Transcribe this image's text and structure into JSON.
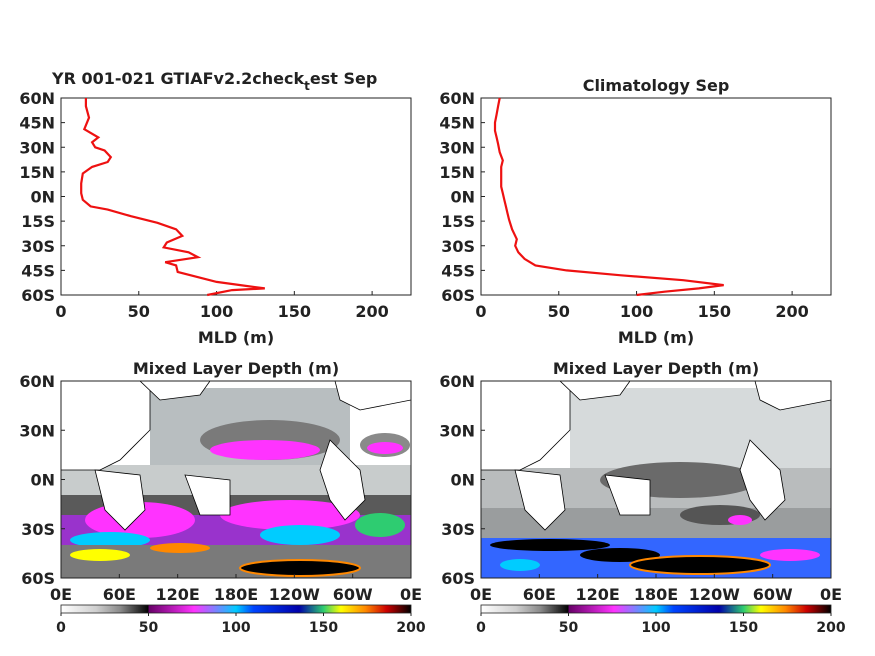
{
  "chart_data": [
    {
      "type": "line",
      "title": "YR 001-021 GTIAFv2.2check",
      "title_sub": "t",
      "title_after": "est Sep",
      "xlabel": "MLD (m)",
      "ylabel": "",
      "xlim": [
        0,
        225
      ],
      "ylim": [
        -60,
        60
      ],
      "xticks": [
        "0",
        "50",
        "100",
        "150",
        "200"
      ],
      "yticks": [
        "60N",
        "45N",
        "30N",
        "15N",
        "0N",
        "15S",
        "30S",
        "45S",
        "60S"
      ],
      "color": "#ee1111",
      "series": [
        {
          "x": [
            94,
            110,
            131,
            100,
            75,
            74,
            67,
            88,
            82,
            66,
            68,
            78,
            74,
            62,
            45,
            30,
            19,
            14,
            13,
            13,
            14,
            20,
            30,
            32,
            28,
            22,
            20,
            24,
            15,
            18,
            16,
            16
          ],
          "y": [
            -60,
            -57,
            -56,
            -52,
            -46,
            -42,
            -40,
            -37,
            -34,
            -31,
            -28,
            -24,
            -20,
            -16,
            -12,
            -8,
            -6,
            -2,
            2,
            8,
            14,
            18,
            21,
            24,
            28,
            30,
            33,
            36,
            41,
            48,
            55,
            60
          ]
        }
      ]
    },
    {
      "type": "line",
      "title": "Climatology Sep",
      "xlabel": "MLD (m)",
      "ylabel": "",
      "xlim": [
        0,
        225
      ],
      "ylim": [
        -60,
        60
      ],
      "xticks": [
        "0",
        "50",
        "100",
        "150",
        "200"
      ],
      "yticks": [
        "60N",
        "45N",
        "30N",
        "15N",
        "0N",
        "15S",
        "30S",
        "45S",
        "60S"
      ],
      "color": "#ee1111",
      "series": [
        {
          "x": [
            100,
            118,
            140,
            156,
            130,
            90,
            55,
            35,
            28,
            24,
            22,
            23,
            20,
            18,
            17,
            16,
            15,
            14,
            13,
            13,
            13,
            14,
            12,
            11,
            10,
            9,
            9,
            10,
            11,
            12
          ],
          "y": [
            -60,
            -58,
            -56,
            -54,
            -51,
            -48,
            -45,
            -42,
            -38,
            -34,
            -30,
            -26,
            -20,
            -14,
            -10,
            -6,
            -2,
            2,
            6,
            12,
            18,
            22,
            27,
            32,
            36,
            40,
            45,
            50,
            55,
            60
          ]
        }
      ]
    },
    {
      "type": "heatmap",
      "title": "Mixed Layer Depth (m)",
      "yticks": [
        "60N",
        "30N",
        "0N",
        "30S",
        "60S"
      ],
      "xticks": [
        "0E",
        "60E",
        "120E",
        "180E",
        "120W",
        "60W",
        "0E"
      ],
      "colorbar_ticks": [
        "0",
        "50",
        "100",
        "150",
        "200"
      ],
      "colorbar_range": [
        0,
        200
      ],
      "colormap": [
        "#ffffff",
        "#cfcfcf",
        "#8a8a8a",
        "#333333",
        "#000000",
        "#ff33ff",
        "#00ccff",
        "#0000cc",
        "#2ecc71",
        "#ffff00",
        "#ff8800",
        "#cc0000",
        "#000000"
      ]
    },
    {
      "type": "heatmap",
      "title": "Mixed Layer Depth (m)",
      "yticks": [
        "60N",
        "30N",
        "0N",
        "30S",
        "60S"
      ],
      "xticks": [
        "0E",
        "60E",
        "120E",
        "180E",
        "120W",
        "60W",
        "0E"
      ],
      "colorbar_ticks": [
        "0",
        "50",
        "100",
        "150",
        "200"
      ],
      "colorbar_range": [
        0,
        200
      ],
      "colormap": [
        "#ffffff",
        "#cfcfcf",
        "#8a8a8a",
        "#333333",
        "#000000",
        "#ff33ff",
        "#00ccff",
        "#0000cc",
        "#2ecc71",
        "#ffff00",
        "#ff8800",
        "#cc0000",
        "#000000"
      ]
    }
  ]
}
